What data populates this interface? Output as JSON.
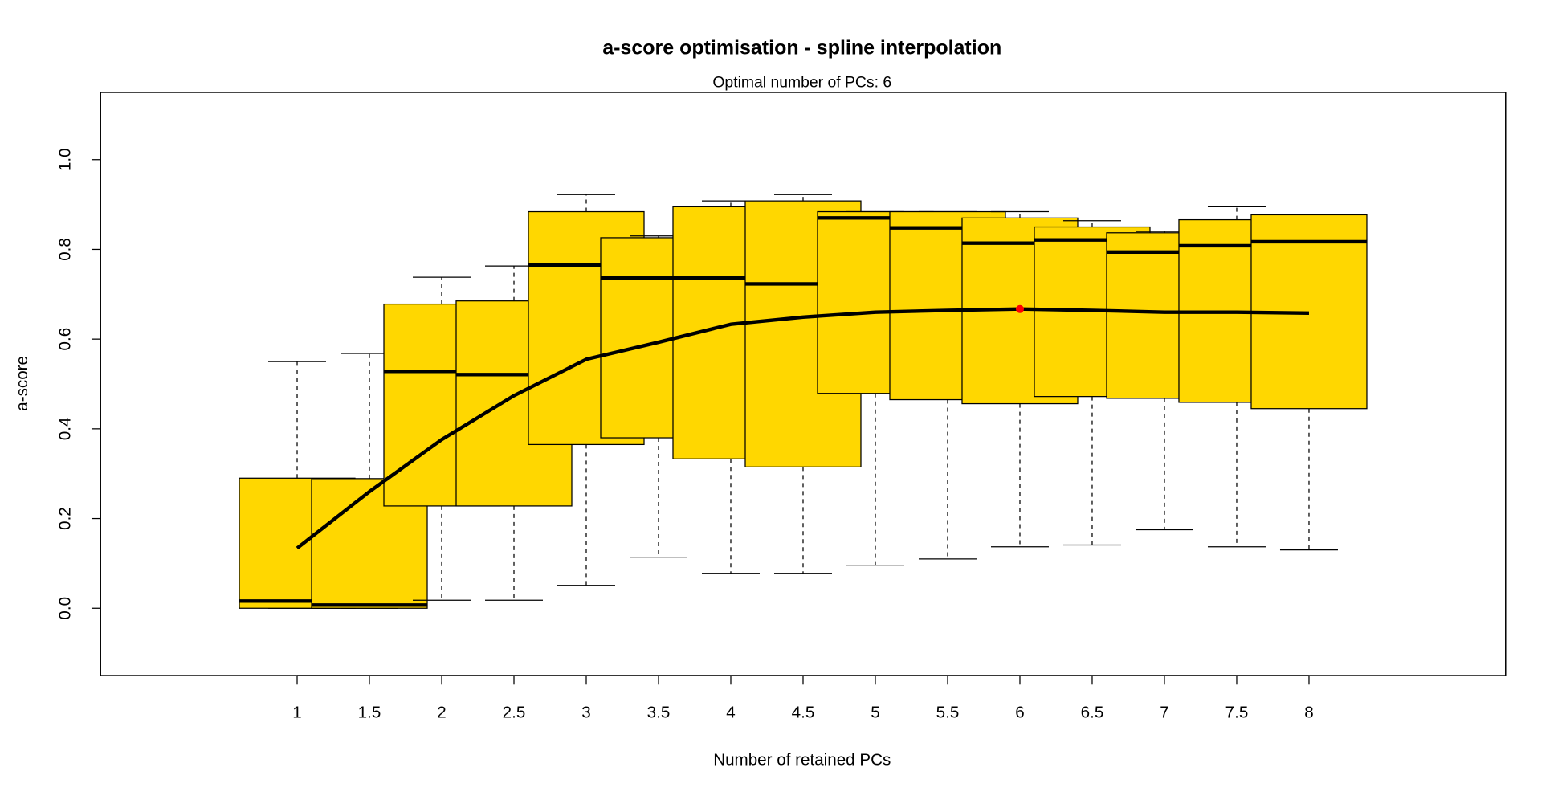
{
  "chart_data": {
    "type": "boxplot",
    "title": "a-score optimisation - spline interpolation",
    "subtitle": "Optimal number of PCs: 6",
    "xlabel": "Number of retained PCs",
    "ylabel": "a-score",
    "xlim": [
      -0.36,
      9.36
    ],
    "ylim": [
      -0.15,
      1.15
    ],
    "yticks": [
      0.0,
      0.2,
      0.4,
      0.6,
      0.8,
      1.0
    ],
    "ytick_labels": [
      "0.0",
      "0.2",
      "0.4",
      "0.6",
      "0.8",
      "1.0"
    ],
    "x": [
      1,
      1.5,
      2,
      2.5,
      3,
      3.5,
      4,
      4.5,
      5,
      5.5,
      6,
      6.5,
      7,
      7.5,
      8
    ],
    "xtick_labels": [
      "1",
      "1.5",
      "2",
      "2.5",
      "3",
      "3.5",
      "4",
      "4.5",
      "5",
      "5.5",
      "6",
      "6.5",
      "7",
      "7.5",
      "8"
    ],
    "box_color": "#FFD700",
    "boxes": [
      {
        "x": 1,
        "min": 0.0,
        "q1": 0.0,
        "median": 0.016,
        "q3": 0.29,
        "max": 0.55
      },
      {
        "x": 1.5,
        "min": 0.0,
        "q1": 0.0,
        "median": 0.007,
        "q3": 0.289,
        "max": 0.568
      },
      {
        "x": 2,
        "min": 0.018,
        "q1": 0.228,
        "median": 0.528,
        "q3": 0.678,
        "max": 0.738
      },
      {
        "x": 2.5,
        "min": 0.018,
        "q1": 0.228,
        "median": 0.521,
        "q3": 0.685,
        "max": 0.763
      },
      {
        "x": 3,
        "min": 0.051,
        "q1": 0.365,
        "median": 0.765,
        "q3": 0.884,
        "max": 0.922
      },
      {
        "x": 3.5,
        "min": 0.114,
        "q1": 0.38,
        "median": 0.736,
        "q3": 0.826,
        "max": 0.83
      },
      {
        "x": 4,
        "min": 0.078,
        "q1": 0.333,
        "median": 0.736,
        "q3": 0.895,
        "max": 0.908
      },
      {
        "x": 4.5,
        "min": 0.078,
        "q1": 0.315,
        "median": 0.723,
        "q3": 0.908,
        "max": 0.922
      },
      {
        "x": 5,
        "min": 0.096,
        "q1": 0.479,
        "median": 0.87,
        "q3": 0.884,
        "max": 0.884
      },
      {
        "x": 5.5,
        "min": 0.11,
        "q1": 0.465,
        "median": 0.848,
        "q3": 0.884,
        "max": 0.884
      },
      {
        "x": 6,
        "min": 0.137,
        "q1": 0.456,
        "median": 0.814,
        "q3": 0.87,
        "max": 0.884
      },
      {
        "x": 6.5,
        "min": 0.141,
        "q1": 0.472,
        "median": 0.821,
        "q3": 0.85,
        "max": 0.864
      },
      {
        "x": 7,
        "min": 0.175,
        "q1": 0.468,
        "median": 0.794,
        "q3": 0.837,
        "max": 0.84
      },
      {
        "x": 7.5,
        "min": 0.137,
        "q1": 0.459,
        "median": 0.808,
        "q3": 0.866,
        "max": 0.895
      },
      {
        "x": 8,
        "min": 0.13,
        "q1": 0.445,
        "median": 0.817,
        "q3": 0.877,
        "max": 0.877
      }
    ],
    "spline": {
      "name": "spline interpolation",
      "x": [
        1,
        1.5,
        2,
        2.5,
        3,
        3.5,
        4,
        4.5,
        5,
        5.5,
        6,
        6.5,
        7,
        7.5,
        8
      ],
      "y": [
        0.134,
        0.26,
        0.376,
        0.474,
        0.555,
        0.593,
        0.633,
        0.649,
        0.66,
        0.664,
        0.667,
        0.664,
        0.66,
        0.66,
        0.658
      ]
    },
    "optimum": {
      "x": 6,
      "y": 0.667,
      "color": "#FF0000"
    }
  }
}
